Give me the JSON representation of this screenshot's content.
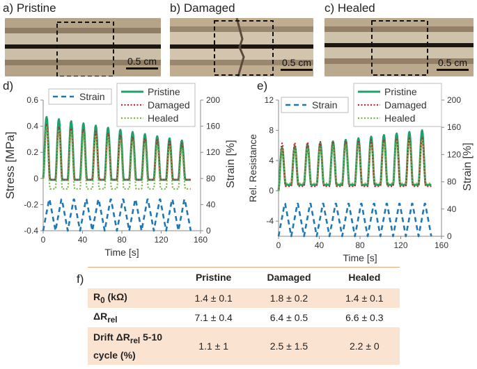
{
  "panels": {
    "a": "a) Pristine",
    "b": "b) Damaged",
    "c": "c) Healed",
    "d": "d)",
    "e": "e)",
    "f": "f)"
  },
  "scale_bar": "0.5 cm",
  "colors": {
    "pristine": "#1f9f6a",
    "damaged": "#c62828",
    "healed": "#7cb342",
    "strain": "#1f77b4",
    "table_shade": "#fbe3d2",
    "table_rule": "#e8a878"
  },
  "chart_data": [
    {
      "type": "line",
      "panel": "d",
      "xlabel": "Time [s]",
      "ylabel": "Stress [MPa]",
      "y2label": "Strain [%]",
      "xlim": [
        0,
        160
      ],
      "ylim": [
        -0.4,
        0.6
      ],
      "y2lim": [
        0,
        200
      ],
      "xticks": [
        "0",
        "40",
        "80",
        "120",
        "160"
      ],
      "yticks": [
        "-0.4",
        "-0.2",
        "0",
        "0.2",
        "0.4",
        "0.6"
      ],
      "y2ticks": [
        "0",
        "40",
        "80",
        "120",
        "160",
        "200"
      ],
      "cycles": 12,
      "period_s": 12.5,
      "series": [
        {
          "name": "Strain",
          "axis": "right",
          "min": 0,
          "max": 50
        },
        {
          "name": "Pristine",
          "axis": "left",
          "first_peak": 0.47,
          "last_peak": 0.29,
          "valley": -0.01
        },
        {
          "name": "Damaged",
          "axis": "left",
          "first_peak": 0.41,
          "last_peak": 0.27,
          "valley": -0.01
        },
        {
          "name": "Healed",
          "axis": "left",
          "first_peak": 0.39,
          "last_peak": 0.23,
          "valley": -0.08
        }
      ],
      "legend": [
        "Strain",
        "Pristine",
        "Damaged",
        "Healed"
      ]
    },
    {
      "type": "line",
      "panel": "e",
      "xlabel": "Time [s]",
      "ylabel": "Rel. Resistance",
      "y2label": "Strain [%]",
      "xlim": [
        0,
        160
      ],
      "ylim": [
        -6,
        12
      ],
      "y2lim": [
        0,
        200
      ],
      "xticks": [
        "0",
        "40",
        "80",
        "120",
        "160"
      ],
      "yticks": [
        "-4",
        "0",
        "4",
        "8",
        "12"
      ],
      "y2ticks": [
        "0",
        "40",
        "80",
        "120",
        "160",
        "200"
      ],
      "cycles": 12,
      "period_s": 12.5,
      "series": [
        {
          "name": "Strain",
          "axis": "right",
          "min": 0,
          "max": 50
        },
        {
          "name": "Pristine",
          "axis": "left",
          "first_peak": 5.7,
          "last_peak": 8.0,
          "valley": 0.8
        },
        {
          "name": "Damaged",
          "axis": "left",
          "first_peak": 6.3,
          "last_peak": 7.0,
          "valley": 0.6
        },
        {
          "name": "Healed",
          "axis": "left",
          "first_peak": 5.4,
          "last_peak": 6.8,
          "valley": 1.0
        }
      ],
      "legend": [
        "Strain",
        "Pristine",
        "Damaged",
        "Healed"
      ]
    }
  ],
  "table": {
    "columns": [
      "",
      "Pristine",
      "Damaged",
      "Healed"
    ],
    "rows": [
      {
        "label": "R",
        "sub": "0",
        "label_rest": " (kΩ)",
        "values": [
          "1.4 ± 0.1",
          "1.8 ± 0.2",
          "1.4 ± 0.1"
        ]
      },
      {
        "label": "ΔR",
        "sub": "rel",
        "label_rest": "",
        "values": [
          "7.1 ± 0.4",
          "6.4 ± 0.5",
          "6.6 ± 0.3"
        ]
      },
      {
        "label": "Drift ΔR",
        "sub": "rel",
        "label_rest": " 5-10 cycle (%)",
        "values": [
          "1.1 ± 1",
          "2.5 ± 1.5",
          "2.2 ± 0"
        ]
      }
    ]
  }
}
